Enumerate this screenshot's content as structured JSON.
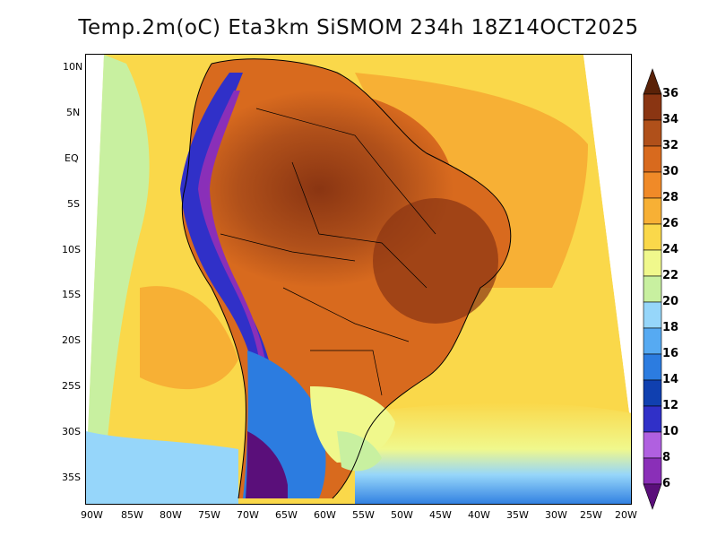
{
  "title": "Temp.2m(oC) Eta3km SiSMOM 234h 18Z14OCT2025",
  "latitude_labels": [
    "10N",
    "5N",
    "EQ",
    "5S",
    "10S",
    "15S",
    "20S",
    "25S",
    "30S",
    "35S"
  ],
  "longitude_labels": [
    "90W",
    "85W",
    "80W",
    "75W",
    "70W",
    "65W",
    "60W",
    "55W",
    "50W",
    "45W",
    "40W",
    "35W",
    "30W",
    "25W",
    "20W"
  ],
  "colorbar": {
    "levels": [
      "6",
      "8",
      "10",
      "12",
      "14",
      "16",
      "18",
      "20",
      "22",
      "24",
      "26",
      "28",
      "30",
      "32",
      "34",
      "36"
    ],
    "colors": [
      "#5a0f7a",
      "#8a2fb8",
      "#b060e0",
      "#3030c8",
      "#1040b0",
      "#2c7ce0",
      "#56aaf2",
      "#96d6fa",
      "#c8f0a0",
      "#f0f88c",
      "#fad84a",
      "#f7b035",
      "#f08a28",
      "#d86a1e",
      "#b0501a",
      "#8a3512",
      "#5a2208"
    ]
  }
}
